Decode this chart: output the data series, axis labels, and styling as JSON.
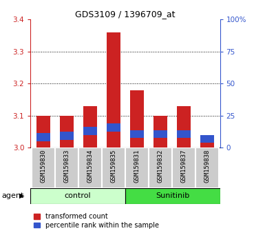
{
  "title": "GDS3109 / 1396709_at",
  "samples": [
    "GSM159830",
    "GSM159833",
    "GSM159834",
    "GSM159835",
    "GSM159831",
    "GSM159832",
    "GSM159837",
    "GSM159838"
  ],
  "red_values": [
    3.1,
    3.1,
    3.13,
    3.36,
    3.18,
    3.1,
    3.13,
    3.02
  ],
  "blue_bottom": [
    3.02,
    3.025,
    3.04,
    3.05,
    3.03,
    3.03,
    3.03,
    3.015
  ],
  "blue_top": [
    3.045,
    3.05,
    3.065,
    3.075,
    3.055,
    3.055,
    3.055,
    3.04
  ],
  "y_min": 3.0,
  "y_max": 3.4,
  "y_ticks": [
    3.0,
    3.1,
    3.2,
    3.3,
    3.4
  ],
  "y2_ticks": [
    0,
    25,
    50,
    75,
    100
  ],
  "y2_labels": [
    "0",
    "25",
    "50",
    "75",
    "100%"
  ],
  "bar_width": 0.6,
  "red_color": "#cc2222",
  "blue_color": "#3355cc",
  "control_bg_light": "#ccffcc",
  "sunitinib_bg": "#44dd44",
  "sample_bg": "#cccccc",
  "legend_red": "transformed count",
  "legend_blue": "percentile rank within the sample",
  "group_label": "agent",
  "control_label": "control",
  "sunitinib_label": "Sunitinib",
  "grid_lines": [
    3.1,
    3.2,
    3.3
  ],
  "title_fontsize": 9,
  "tick_fontsize": 7.5,
  "sample_fontsize": 6.5,
  "group_fontsize": 8
}
